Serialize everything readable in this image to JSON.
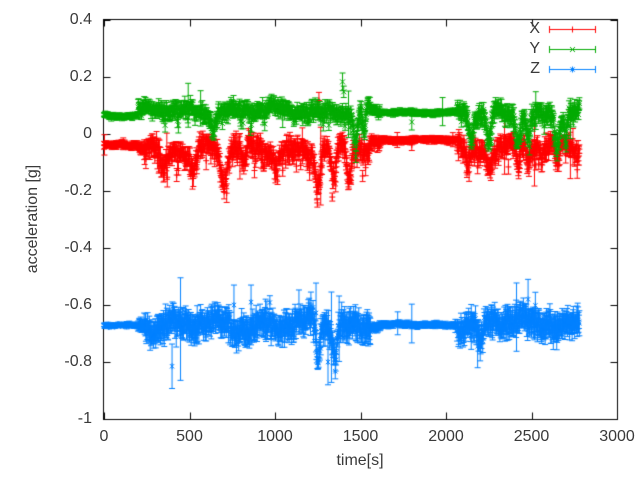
{
  "figure": {
    "background": "#ffffff"
  },
  "chart_data": {
    "type": "scatter",
    "style": "errorbars",
    "title": "",
    "xlabel": "time[s]",
    "ylabel": "acceleration [g]",
    "xlim": [
      0,
      3000
    ],
    "ylim": [
      -1,
      0.4
    ],
    "grid": false,
    "legend_position": "top-right-inside",
    "axis_color": "#000000",
    "text_color": "#3a3a3a",
    "x_ticks": {
      "values": [
        0,
        500,
        1000,
        1500,
        2000,
        2500,
        3000
      ],
      "labels": [
        "0",
        "500",
        "1000",
        "1500",
        "2000",
        "2500",
        "3000"
      ]
    },
    "y_ticks": {
      "values": [
        0.4,
        0.2,
        0,
        -0.2,
        -0.4,
        -0.6,
        -0.8,
        -1
      ],
      "labels": [
        "0.4",
        "0.2",
        "0",
        "-0.2",
        "-0.4",
        "-0.6",
        "-0.8",
        "-1"
      ]
    },
    "sample_interval_s": 2.5,
    "t_start": 0,
    "t_end": 2780,
    "series": [
      {
        "name": "X",
        "color": "#ff0000",
        "marker": "plus",
        "seed": 11,
        "asym_down": 1.35,
        "asym_up": 0.65,
        "segments": [
          {
            "t0": 0,
            "t1": 200,
            "base": -0.04,
            "amp": 0.006,
            "err": 0.012,
            "sp": 0,
            "sm": 0,
            "bias": 0
          },
          {
            "t0": 200,
            "t1": 235,
            "base": -0.045,
            "amp": 0.012,
            "err": 0.016,
            "sp": 0,
            "sm": 0,
            "bias": 0
          },
          {
            "t0": 235,
            "t1": 1560,
            "base": -0.048,
            "amp": 0.03,
            "err": 0.028,
            "sp": 0.12,
            "sm": 0.07,
            "bias": -1
          },
          {
            "t0": 1560,
            "t1": 1620,
            "base": -0.03,
            "amp": 0.01,
            "err": 0.018,
            "sp": 0,
            "sm": 0,
            "bias": 0
          },
          {
            "t0": 1620,
            "t1": 2065,
            "base": -0.02,
            "amp": 0.004,
            "err": 0.011,
            "sp": 0,
            "sm": 0,
            "bias": 0
          },
          {
            "t0": 2065,
            "t1": 2300,
            "base": -0.045,
            "amp": 0.032,
            "err": 0.03,
            "sp": 0.12,
            "sm": 0.06,
            "bias": -1
          },
          {
            "t0": 2300,
            "t1": 2780,
            "base": -0.04,
            "amp": 0.026,
            "err": 0.026,
            "sp": 0.1,
            "sm": 0.05,
            "bias": -1
          }
        ],
        "dips": [
          {
            "t": 350,
            "v": -0.12,
            "w": 18
          },
          {
            "t": 520,
            "v": -0.13,
            "w": 15
          },
          {
            "t": 700,
            "v": -0.16,
            "w": 20
          },
          {
            "t": 820,
            "v": -0.13,
            "w": 12
          },
          {
            "t": 1010,
            "v": -0.11,
            "w": 10
          },
          {
            "t": 1250,
            "v": -0.19,
            "w": 14
          },
          {
            "t": 1340,
            "v": -0.17,
            "w": 16
          },
          {
            "t": 1430,
            "v": -0.15,
            "w": 12
          },
          {
            "t": 2130,
            "v": -0.12,
            "w": 14
          },
          {
            "t": 2250,
            "v": -0.1,
            "w": 10
          },
          {
            "t": 2420,
            "v": -0.1,
            "w": 10
          },
          {
            "t": 2480,
            "v": -0.09,
            "w": 8
          },
          {
            "t": 2560,
            "v": -0.1,
            "w": 8
          },
          {
            "t": 2650,
            "v": -0.12,
            "w": 12
          }
        ],
        "outliers": [
          {
            "t": 1257,
            "v": 0.118,
            "e": 0.028
          },
          {
            "t": 1800,
            "v": -0.038,
            "e": 0.02
          }
        ]
      },
      {
        "name": "Y",
        "color": "#00aa00",
        "marker": "cross",
        "seed": 23,
        "asym_down": 1.1,
        "asym_up": 0.9,
        "segments": [
          {
            "t0": 0,
            "t1": 200,
            "base": 0.065,
            "amp": 0.005,
            "err": 0.01,
            "sp": 0,
            "sm": 0,
            "bias": 0
          },
          {
            "t0": 200,
            "t1": 1560,
            "base": 0.082,
            "amp": 0.02,
            "err": 0.022,
            "sp": 0.06,
            "sm": 0.05,
            "bias": -1
          },
          {
            "t0": 1560,
            "t1": 1620,
            "base": 0.078,
            "amp": 0.01,
            "err": 0.014,
            "sp": 0,
            "sm": 0,
            "bias": 0
          },
          {
            "t0": 1620,
            "t1": 2065,
            "base": 0.076,
            "amp": 0.004,
            "err": 0.01,
            "sp": 0,
            "sm": 0,
            "bias": 0
          },
          {
            "t0": 2065,
            "t1": 2780,
            "base": 0.072,
            "amp": 0.024,
            "err": 0.024,
            "sp": 0.08,
            "sm": 0.05,
            "bias": -1
          }
        ],
        "dips": [
          {
            "t": 640,
            "v": 0.02,
            "w": 10
          },
          {
            "t": 1470,
            "v": -0.04,
            "w": 12
          },
          {
            "t": 1520,
            "v": 0.0,
            "w": 8
          },
          {
            "t": 2145,
            "v": -0.02,
            "w": 12
          },
          {
            "t": 2250,
            "v": -0.035,
            "w": 14
          },
          {
            "t": 2420,
            "v": -0.015,
            "w": 10
          },
          {
            "t": 2480,
            "v": 0.0,
            "w": 8
          },
          {
            "t": 2650,
            "v": -0.03,
            "w": 14
          },
          {
            "t": 2700,
            "v": -0.01,
            "w": 8
          }
        ],
        "outliers": [
          {
            "t": 1395,
            "v": 0.183,
            "e": 0.031
          },
          {
            "t": 1402,
            "v": 0.148,
            "e": 0.02
          },
          {
            "t": 1800,
            "v": 0.042,
            "e": 0.028
          }
        ]
      },
      {
        "name": "Z",
        "color": "#0080ff",
        "marker": "asterisk",
        "seed": 37,
        "asym_down": 1.0,
        "asym_up": 1.0,
        "segments": [
          {
            "t0": 0,
            "t1": 200,
            "base": -0.672,
            "amp": 0.004,
            "err": 0.008,
            "sp": 0,
            "sm": 0,
            "bias": 0
          },
          {
            "t0": 200,
            "t1": 235,
            "base": -0.67,
            "amp": 0.014,
            "err": 0.018,
            "sp": 0,
            "sm": 0,
            "bias": 0
          },
          {
            "t0": 235,
            "t1": 1560,
            "base": -0.67,
            "amp": 0.03,
            "err": 0.038,
            "sp": 0.05,
            "sm": 0.05,
            "bias": 0
          },
          {
            "t0": 1560,
            "t1": 1620,
            "base": -0.67,
            "amp": 0.01,
            "err": 0.014,
            "sp": 0,
            "sm": 0,
            "bias": 0
          },
          {
            "t0": 1620,
            "t1": 2065,
            "base": -0.67,
            "amp": 0.004,
            "err": 0.01,
            "sp": 0,
            "sm": 0,
            "bias": 0
          },
          {
            "t0": 2065,
            "t1": 2780,
            "base": -0.665,
            "amp": 0.028,
            "err": 0.038,
            "sp": 0.05,
            "sm": 0.05,
            "bias": 0
          }
        ],
        "dips": [
          {
            "t": 1250,
            "v": -0.78,
            "w": 10
          },
          {
            "t": 1350,
            "v": -0.76,
            "w": 12
          },
          {
            "t": 2200,
            "v": -0.76,
            "w": 12
          }
        ],
        "outliers": [
          {
            "t": 398,
            "v": -0.815,
            "e": 0.078
          },
          {
            "t": 760,
            "v": -0.6,
            "e": 0.07
          },
          {
            "t": 860,
            "v": -0.59,
            "e": 0.06
          },
          {
            "t": 1240,
            "v": -0.628,
            "e": 0.105
          },
          {
            "t": 1310,
            "v": -0.8,
            "e": 0.08
          },
          {
            "t": 1800,
            "v": -0.665,
            "e": 0.068
          },
          {
            "t": 2185,
            "v": -0.745,
            "e": 0.075
          },
          {
            "t": 2480,
            "v": -0.58,
            "e": 0.07
          }
        ]
      }
    ]
  }
}
